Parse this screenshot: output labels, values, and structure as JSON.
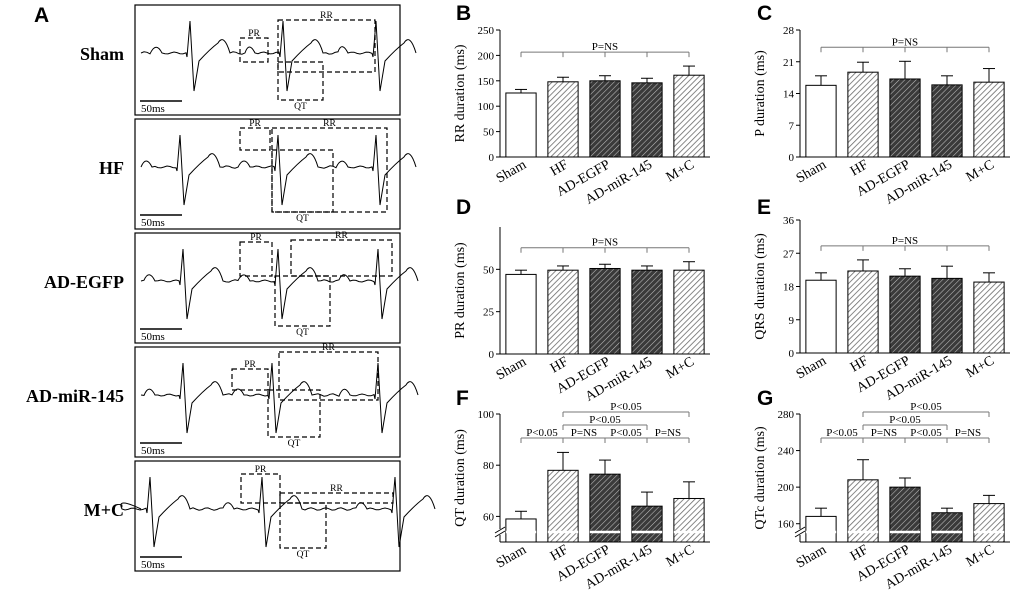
{
  "figure": {
    "hatch_color": "#555555",
    "dark_fill": "#4a4a4a",
    "light_fill": "#cfcfcf",
    "gray_line": "#777777"
  },
  "ecg_panel": {
    "letter": "A",
    "scale_label": "50ms",
    "box_labels": {
      "pr": "PR",
      "rr": "RR",
      "qt": "QT"
    },
    "groups": [
      {
        "label": "Sham"
      },
      {
        "label": "HF"
      },
      {
        "label": "AD-EGFP"
      },
      {
        "label": "AD-miR-145"
      },
      {
        "label": "M+C"
      }
    ]
  },
  "chart_data": [
    {
      "panel": "B",
      "type": "bar",
      "categories": [
        "Sham",
        "HF",
        "AD-EGFP",
        "AD-miR-145",
        "M+C"
      ],
      "values": [
        126,
        148,
        150,
        146,
        161
      ],
      "errors": [
        7,
        9,
        10,
        9,
        18
      ],
      "ylabel": "RR duration (ms)",
      "ylim": [
        0,
        250
      ],
      "yticks": [
        0,
        50,
        100,
        150,
        200,
        250
      ],
      "significance": [
        {
          "from": 0,
          "to": 4,
          "label": "P=NS",
          "level": 0,
          "drops": [
            1,
            2,
            3
          ]
        }
      ]
    },
    {
      "panel": "C",
      "type": "bar",
      "categories": [
        "Sham",
        "HF",
        "AD-EGFP",
        "AD-miR-145",
        "M+C"
      ],
      "values": [
        15.8,
        18.7,
        17.2,
        15.9,
        16.5
      ],
      "errors": [
        2.1,
        2.2,
        3.9,
        2.0,
        3.0
      ],
      "ylabel": "P duration (ms)",
      "ylim": [
        0,
        28
      ],
      "yticks": [
        0,
        7,
        14,
        21,
        28
      ],
      "significance": [
        {
          "from": 0,
          "to": 4,
          "label": "P=NS",
          "level": 0,
          "drops": [
            1,
            2,
            3
          ]
        }
      ]
    },
    {
      "panel": "D",
      "type": "bar",
      "categories": [
        "Sham",
        "HF",
        "AD-EGFP",
        "AD-miR-145",
        "M+C"
      ],
      "values": [
        47,
        49.5,
        50.5,
        49.5,
        49.5
      ],
      "errors": [
        2.5,
        2.5,
        2.5,
        2.5,
        5
      ],
      "ylabel": "PR duration (ms)",
      "ylim": [
        0,
        75
      ],
      "yticks": [
        0,
        25,
        50
      ],
      "significance": [
        {
          "from": 0,
          "to": 4,
          "label": "P=NS",
          "level": 0,
          "drops": [
            1,
            2,
            3
          ]
        }
      ]
    },
    {
      "panel": "E",
      "type": "bar",
      "categories": [
        "Sham",
        "HF",
        "AD-EGFP",
        "AD-miR-145",
        "M+C"
      ],
      "values": [
        19.7,
        22.2,
        20.8,
        20.2,
        19.2
      ],
      "errors": [
        2,
        3,
        2,
        3.3,
        2.5
      ],
      "ylabel": "QRS duration (ms)",
      "ylim": [
        0,
        36
      ],
      "yticks": [
        0,
        9,
        18,
        27,
        36
      ],
      "significance": [
        {
          "from": 0,
          "to": 4,
          "label": "P=NS",
          "level": 0,
          "drops": [
            1,
            2,
            3
          ]
        }
      ]
    },
    {
      "panel": "F",
      "type": "bar",
      "categories": [
        "Sham",
        "HF",
        "AD-EGFP",
        "AD-miR-145",
        "M+C"
      ],
      "values": [
        59,
        78,
        76.5,
        64,
        67
      ],
      "errors": [
        3,
        7,
        5.5,
        5.5,
        6.5
      ],
      "ylabel": "QT duration (ms)",
      "ylim": [
        50,
        100
      ],
      "yticks": [
        60,
        80,
        100
      ],
      "axis_break": true,
      "significance": [
        {
          "from": 1,
          "to": 4,
          "label": "P<0.05",
          "level": 0
        },
        {
          "from": 1,
          "to": 3,
          "label": "P<0.05",
          "level": 1
        },
        {
          "from": 0,
          "to": 1,
          "label": "P<0.05",
          "level": 2
        },
        {
          "from": 1,
          "to": 2,
          "label": "P=NS",
          "level": 2
        },
        {
          "from": 2,
          "to": 3,
          "label": "P<0.05",
          "level": 2
        },
        {
          "from": 3,
          "to": 4,
          "label": "P=NS",
          "level": 2
        }
      ]
    },
    {
      "panel": "G",
      "type": "bar",
      "categories": [
        "Sham",
        "HF",
        "AD-EGFP",
        "AD-miR-145",
        "M+C"
      ],
      "values": [
        168,
        208,
        200,
        172,
        182
      ],
      "errors": [
        9,
        22,
        10,
        5,
        9
      ],
      "ylabel": "QTc duration (ms)",
      "ylim": [
        140,
        280
      ],
      "yticks": [
        160,
        200,
        240,
        280
      ],
      "axis_break": true,
      "significance": [
        {
          "from": 1,
          "to": 4,
          "label": "P<0.05",
          "level": 0
        },
        {
          "from": 1,
          "to": 3,
          "label": "P<0.05",
          "level": 1
        },
        {
          "from": 0,
          "to": 1,
          "label": "P<0.05",
          "level": 2
        },
        {
          "from": 1,
          "to": 2,
          "label": "P=NS",
          "level": 2
        },
        {
          "from": 2,
          "to": 3,
          "label": "P<0.05",
          "level": 2
        },
        {
          "from": 3,
          "to": 4,
          "label": "P=NS",
          "level": 2
        }
      ]
    }
  ]
}
